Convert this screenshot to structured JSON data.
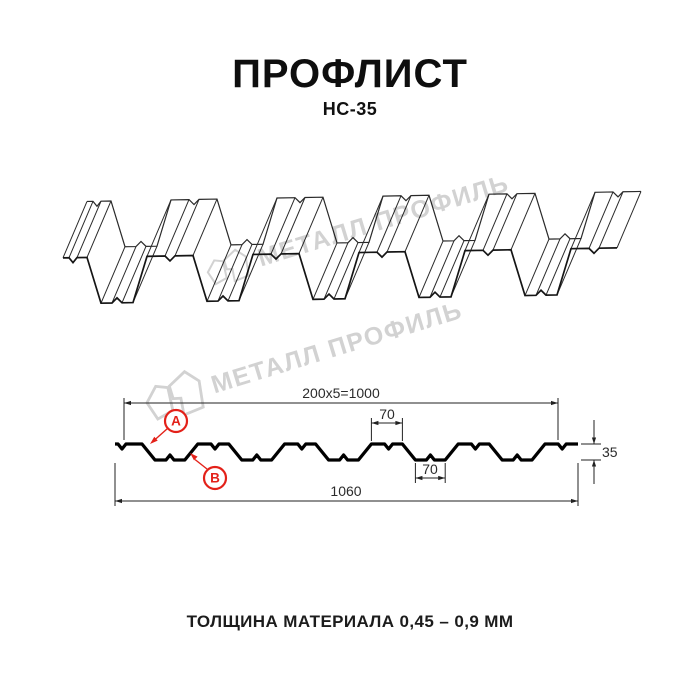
{
  "page": {
    "title": "ПРОФЛИСТ",
    "subtitle": "НС-35",
    "footer": "ТОЛЩИНА МАТЕРИАЛА 0,45 – 0,9 ММ"
  },
  "watermark": {
    "text": "МЕТАЛЛ ПРОФИЛЬ"
  },
  "diagram": {
    "profile_code": "НС-35",
    "dims": {
      "coverage": "200x5=1000",
      "rib_top_width": "70",
      "rib_bottom_width": "70",
      "height": "35",
      "overall_width": "1060"
    },
    "point_labels": {
      "a": "А",
      "b": "В"
    }
  },
  "colors": {
    "accent_red": "#e32119",
    "line": "#222222",
    "profile_black": "#000000",
    "watermark_gray": "#d2d2d2"
  }
}
